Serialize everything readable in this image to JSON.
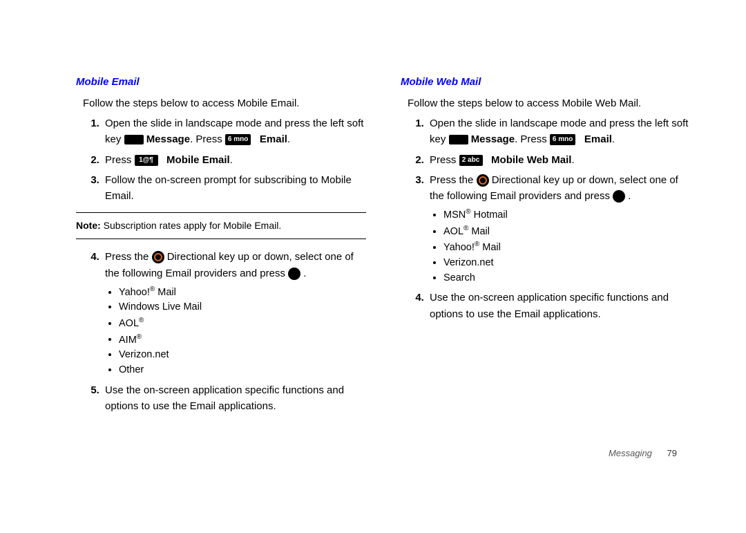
{
  "left": {
    "heading": "Mobile Email",
    "intro": "Follow the steps below to access Mobile Email.",
    "steps": {
      "s1_a": "Open the slide in landscape mode and press the left soft key ",
      "s1_msg": "Message",
      "s1_b": ". Press ",
      "s1_email": "Email",
      "s2_a": "Press ",
      "s2_b": "Mobile Email",
      "s3": "Follow the on-screen prompt for subscribing to Mobile Email.",
      "note_label": "Note:",
      "note_text": " Subscription rates apply for Mobile Email.",
      "s4_a": "Press the ",
      "s4_b": " Directional key up or down, select one of the following Email providers and press ",
      "providers": [
        "Yahoo!® Mail",
        "Windows Live Mail",
        "AOL®",
        "AIM®",
        "Verizon.net",
        "Other"
      ],
      "s5": "Use the on-screen application specific functions and options to use the Email applications."
    },
    "key6_label": "6 mno",
    "key1_label": "1@¶"
  },
  "right": {
    "heading": "Mobile Web Mail",
    "intro": "Follow the steps below to access Mobile Web Mail.",
    "steps": {
      "s1_a": "Open the slide in landscape mode and press the left soft key ",
      "s1_msg": "Message",
      "s1_b": ". Press ",
      "s1_email": "Email",
      "s2_a": "Press ",
      "s2_b": "Mobile Web Mail",
      "s3_a": "Press the ",
      "s3_b": " Directional key up or down, select one of the following Email providers and press ",
      "providers": [
        "MSN® Hotmail",
        "AOL® Mail",
        "Yahoo!® Mail",
        "Verizon.net",
        "Search"
      ],
      "s4": "Use the on-screen application specific functions and options to use the Email applications."
    },
    "key6_label": "6 mno",
    "key2_label": "2 abc"
  },
  "footer": {
    "section": "Messaging",
    "page": "79"
  },
  "colors": {
    "heading": "#0000ff",
    "text": "#000000",
    "key_bg": "#000000",
    "ring": "#d2691e",
    "background": "#ffffff"
  }
}
